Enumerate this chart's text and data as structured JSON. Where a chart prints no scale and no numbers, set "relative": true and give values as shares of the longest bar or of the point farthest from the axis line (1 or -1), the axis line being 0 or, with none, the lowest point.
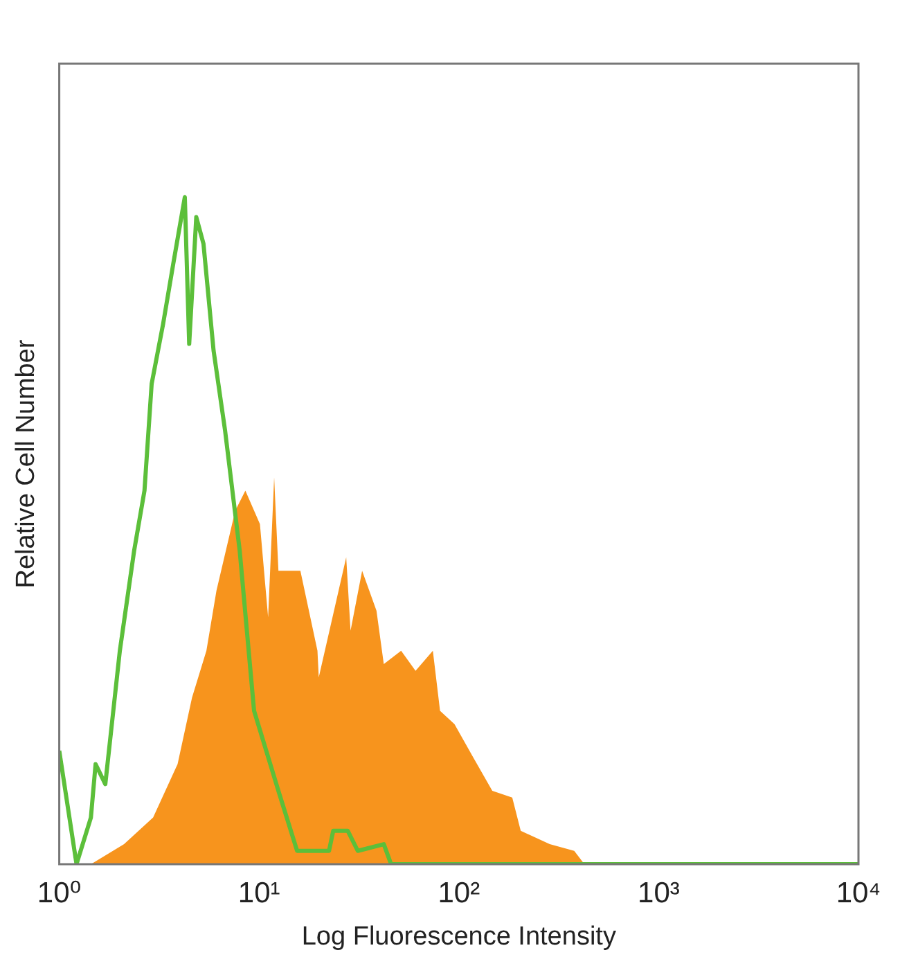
{
  "chart_data": {
    "type": "area",
    "xlabel": "Log Fluorescence Intensity",
    "ylabel": "Relative Cell Number",
    "log": "x",
    "relative": true,
    "xlim": [
      1,
      10000
    ],
    "xticks": [
      {
        "value": 1,
        "label": "10⁰"
      },
      {
        "value": 10,
        "label": "10¹"
      },
      {
        "value": 100,
        "label": "10²"
      },
      {
        "value": 1000,
        "label": "10³"
      },
      {
        "value": 10000,
        "label": "10⁴"
      }
    ],
    "series": [
      {
        "type": "area",
        "color": "#f7941d",
        "x": [
          1.44,
          2.11,
          2.95,
          3.91,
          4.62,
          5.45,
          6.12,
          7.6,
          8.54,
          10.1,
          11.1,
          11.9,
          12.5,
          15.5,
          16.1,
          19.6,
          19.9,
          27.3,
          28.7,
          32.8,
          38.7,
          42.1,
          51.4,
          60.7,
          74.1,
          80.5,
          95.1,
          118,
          147,
          185,
          204,
          285,
          378,
          425,
          10000
        ],
        "values": [
          0,
          0.03,
          0.07,
          0.15,
          0.25,
          0.32,
          0.41,
          0.53,
          0.56,
          0.51,
          0.37,
          0.58,
          0.44,
          0.44,
          0.44,
          0.32,
          0.28,
          0.46,
          0.35,
          0.44,
          0.38,
          0.3,
          0.32,
          0.29,
          0.32,
          0.23,
          0.21,
          0.16,
          0.11,
          0.1,
          0.05,
          0.03,
          0.02,
          0,
          0
        ]
      },
      {
        "type": "line",
        "color": "#5cbf3a",
        "x": [
          1,
          1.22,
          1.44,
          1.52,
          1.7,
          2.01,
          2.37,
          2.67,
          2.9,
          3.31,
          3.72,
          4.25,
          4.47,
          4.85,
          5.27,
          5.92,
          6.76,
          8,
          9.44,
          12.5,
          15.5,
          22.4,
          23.5,
          27.8,
          31.2,
          42.1,
          45.8,
          10000
        ],
        "values": [
          0.17,
          0,
          0.07,
          0.15,
          0.12,
          0.32,
          0.47,
          0.56,
          0.72,
          0.81,
          0.9,
          1,
          0.78,
          0.97,
          0.93,
          0.77,
          0.65,
          0.47,
          0.23,
          0.11,
          0.02,
          0.02,
          0.05,
          0.05,
          0.02,
          0.03,
          0,
          0
        ]
      }
    ]
  }
}
